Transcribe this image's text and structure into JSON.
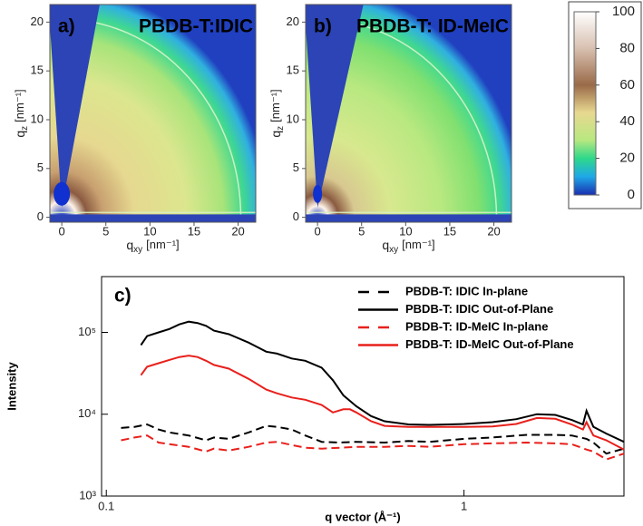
{
  "chart_data": [
    {
      "type": "heatmap",
      "panel_label": "a)",
      "title": "PBDB-T:IDIC",
      "x_label": {
        "symbol": "q",
        "subscript": "xy",
        "unit": "[nm⁻¹]"
      },
      "y_label": {
        "symbol": "q",
        "subscript": "z",
        "unit": "[nm⁻¹]"
      },
      "xlim": [
        -1.35,
        22
      ],
      "ylim": [
        -0.5,
        21.8
      ],
      "xticks": [
        0,
        5,
        10,
        15,
        20
      ],
      "yticks": [
        0,
        5,
        10,
        15,
        20
      ]
    },
    {
      "type": "heatmap",
      "panel_label": "b)",
      "title": "PBDB-T: ID-MeIC",
      "x_label": {
        "symbol": "q",
        "subscript": "xy",
        "unit": "[nm⁻¹]"
      },
      "y_label": {
        "symbol": "q",
        "subscript": "z",
        "unit": "[nm⁻¹]"
      },
      "xlim": [
        -1.35,
        22
      ],
      "ylim": [
        -0.5,
        21.8
      ],
      "xticks": [
        0,
        5,
        10,
        15,
        20
      ],
      "yticks": [
        0,
        5,
        10,
        15,
        20
      ]
    },
    {
      "type": "line",
      "panel_label": "c)",
      "x_label": "q vector (Å⁻¹)",
      "y_label": "Intensity",
      "xlog": true,
      "ylog": true,
      "xlim": [
        0.097,
        2.8
      ],
      "ylim": [
        1000,
        480000
      ],
      "xticks": [
        0.1,
        1
      ],
      "yticks": [
        {
          "value": 1000,
          "label": "10³"
        },
        {
          "value": 10000,
          "label": "10⁴"
        },
        {
          "value": 100000,
          "label": "10⁵"
        }
      ],
      "legend": "upper right",
      "series": [
        {
          "name": "PBDB-T: IDIC In-plane",
          "color": "#000000",
          "line_style": "dashed",
          "x": [
            0.11,
            0.12,
            0.13,
            0.14,
            0.15,
            0.17,
            0.19,
            0.2,
            0.22,
            0.25,
            0.28,
            0.3,
            0.33,
            0.36,
            0.4,
            0.45,
            0.5,
            0.6,
            0.7,
            0.8,
            1.0,
            1.2,
            1.5,
            1.8,
            2.0,
            2.2,
            2.3,
            2.5,
            2.8
          ],
          "values": [
            6800,
            7000,
            7500,
            6500,
            6000,
            5500,
            4800,
            5200,
            5000,
            6000,
            7200,
            7000,
            6500,
            5500,
            4600,
            4500,
            4600,
            4500,
            4700,
            4600,
            5000,
            5200,
            5600,
            5600,
            5500,
            5000,
            4500,
            3300,
            3800
          ]
        },
        {
          "name": "PBDB-T: IDIC Out-of-Plane",
          "color": "#000000",
          "line_style": "solid",
          "x": [
            0.125,
            0.13,
            0.14,
            0.15,
            0.16,
            0.17,
            0.18,
            0.19,
            0.2,
            0.22,
            0.25,
            0.28,
            0.3,
            0.33,
            0.36,
            0.4,
            0.43,
            0.46,
            0.5,
            0.55,
            0.6,
            0.7,
            0.8,
            1.0,
            1.2,
            1.4,
            1.6,
            1.8,
            2.0,
            2.15,
            2.2,
            2.3,
            2.5,
            2.8
          ],
          "values": [
            70000,
            90000,
            100000,
            110000,
            125000,
            135000,
            130000,
            120000,
            105000,
            95000,
            75000,
            58000,
            55000,
            48000,
            45000,
            37000,
            26000,
            17000,
            12500,
            9500,
            8200,
            7500,
            7400,
            7600,
            8000,
            8700,
            10000,
            9800,
            8500,
            7500,
            11000,
            7000,
            5800,
            4600
          ]
        },
        {
          "name": "PBDB-T: ID-MeIC In-plane",
          "color": "#e8201c",
          "line_style": "dashed",
          "x": [
            0.11,
            0.12,
            0.13,
            0.14,
            0.15,
            0.17,
            0.19,
            0.2,
            0.22,
            0.25,
            0.28,
            0.3,
            0.33,
            0.36,
            0.4,
            0.45,
            0.5,
            0.6,
            0.7,
            0.8,
            1.0,
            1.2,
            1.5,
            1.8,
            2.0,
            2.2,
            2.3,
            2.5,
            2.8
          ],
          "values": [
            4800,
            5200,
            5500,
            4500,
            4300,
            4000,
            3500,
            3800,
            3600,
            4000,
            4500,
            4600,
            4200,
            3900,
            3800,
            3900,
            4000,
            4000,
            4100,
            4000,
            4300,
            4400,
            4500,
            4400,
            4300,
            3700,
            3500,
            2800,
            3300
          ]
        },
        {
          "name": "PBDB-T: ID-MeIC Out-of-Plane",
          "color": "#e8201c",
          "line_style": "solid",
          "x": [
            0.125,
            0.13,
            0.14,
            0.15,
            0.16,
            0.17,
            0.18,
            0.19,
            0.2,
            0.22,
            0.25,
            0.28,
            0.3,
            0.33,
            0.36,
            0.4,
            0.43,
            0.46,
            0.48,
            0.5,
            0.55,
            0.6,
            0.7,
            0.8,
            1.0,
            1.2,
            1.4,
            1.6,
            1.8,
            2.0,
            2.15,
            2.2,
            2.3,
            2.5,
            2.8
          ],
          "values": [
            30000,
            38000,
            42000,
            46000,
            50000,
            52000,
            50000,
            45000,
            40000,
            36000,
            27000,
            20000,
            18000,
            16000,
            15000,
            13000,
            10500,
            11500,
            11500,
            10500,
            8200,
            7200,
            7000,
            7000,
            7000,
            7100,
            7600,
            9000,
            8800,
            7500,
            6500,
            8000,
            5500,
            4800,
            3700
          ]
        }
      ]
    }
  ],
  "colorbar": {
    "lim": [
      0,
      100
    ],
    "ticks": [
      0,
      20,
      40,
      60,
      80,
      100
    ]
  }
}
